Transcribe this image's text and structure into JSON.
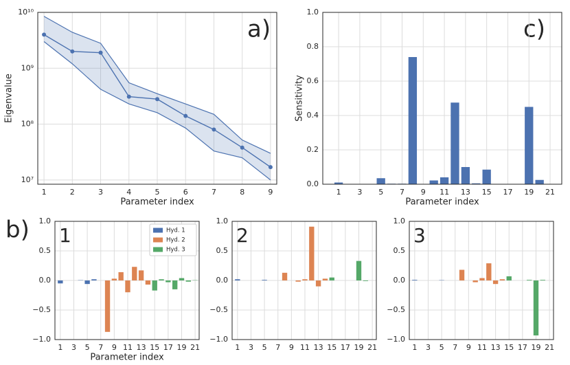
{
  "panel_labels": {
    "a": "a)",
    "b": "b)",
    "c": "c)"
  },
  "chart_data": [
    {
      "type": "line",
      "x": [
        1,
        2,
        3,
        4,
        5,
        6,
        7,
        8,
        9
      ],
      "values": [
        4000000000,
        2000000000,
        1900000000,
        310000000,
        280000000,
        140000000,
        80000000,
        38000000,
        17000000
      ],
      "upper": [
        8500000000,
        4400000000,
        2800000000,
        550000000,
        350000000,
        230000000,
        150000000,
        52000000,
        30000000
      ],
      "lower": [
        3000000000,
        1200000000,
        420000000,
        230000000,
        160000000,
        85000000,
        33000000,
        25000000,
        10000000
      ],
      "color": "#4c72b0",
      "log_y": true,
      "grid": true,
      "xlim": [
        0.78,
        9.22
      ],
      "xticks": [
        1,
        2,
        3,
        4,
        5,
        6,
        7,
        8,
        9
      ],
      "ylim": [
        8400000,
        10000000000
      ],
      "yticks": [
        {
          "value": 10000000,
          "label": "10⁷"
        },
        {
          "value": 100000000,
          "label": "10⁸"
        },
        {
          "value": 1000000000,
          "label": "10⁹"
        },
        {
          "value": 10000000000,
          "label": "10¹⁰"
        }
      ],
      "x_label": "Parameter index",
      "y_label": "Eigenvalue"
    },
    {
      "type": "bar",
      "x": [
        1,
        2,
        3,
        4,
        5,
        6,
        7,
        8,
        9,
        10,
        11,
        12,
        13,
        14,
        15,
        16,
        17,
        18,
        19,
        20,
        21
      ],
      "values": [
        0.01,
        0,
        0,
        0,
        0.035,
        0.003,
        0.003,
        0.74,
        0,
        0.022,
        0.04,
        0.475,
        0.1,
        0.005,
        0.085,
        0,
        0,
        0,
        0.45,
        0.025,
        0
      ],
      "color": "#4c72b0",
      "grid": true,
      "xlim": [
        -0.5,
        22.1
      ],
      "xticks": [
        1,
        3,
        5,
        7,
        9,
        11,
        13,
        15,
        17,
        19,
        21
      ],
      "ylim": [
        0,
        1
      ],
      "yticks": [
        {
          "value": 0,
          "label": "0.0"
        },
        0.2,
        0.4,
        0.6,
        0.8,
        {
          "value": 1,
          "label": "1.0"
        }
      ],
      "x_label": "Parameter index",
      "y_label": "Sensitivity"
    },
    {
      "type": "bar",
      "annotation": "1",
      "x": [
        1,
        2,
        3,
        4,
        5,
        6,
        7,
        8,
        9,
        10,
        11,
        12,
        13,
        14,
        15,
        16,
        17,
        18,
        19,
        20,
        21
      ],
      "series": [
        {
          "name": "Hyd. 1",
          "color": "#4c72b0",
          "values": [
            -0.05,
            0,
            0,
            0.005,
            -0.06,
            0.02,
            0,
            null,
            null,
            null,
            null,
            null,
            null,
            null,
            null,
            null,
            null,
            null,
            null,
            null,
            null
          ]
        },
        {
          "name": "Hyd. 2",
          "color": "#dd8452",
          "values": [
            null,
            null,
            null,
            null,
            null,
            null,
            null,
            -0.87,
            0.03,
            0.14,
            -0.2,
            0.23,
            0.17,
            -0.07,
            null,
            null,
            null,
            null,
            null,
            null,
            null
          ]
        },
        {
          "name": "Hyd. 3",
          "color": "#55a868",
          "values": [
            null,
            null,
            null,
            null,
            null,
            null,
            null,
            null,
            null,
            null,
            null,
            null,
            null,
            null,
            -0.17,
            0.02,
            -0.03,
            -0.15,
            0.04,
            -0.02,
            0.005
          ]
        }
      ],
      "legend": "upper right",
      "grid": true,
      "xlim": [
        0.2,
        21.6
      ],
      "xticks": [
        1,
        3,
        5,
        7,
        9,
        11,
        13,
        15,
        17,
        19,
        21
      ],
      "ylim": [
        -1,
        1
      ],
      "yticks": [
        {
          "value": -1,
          "label": "−1.0"
        },
        {
          "value": -0.5,
          "label": "−0.5"
        },
        {
          "value": 0,
          "label": "0.0"
        },
        0.5,
        {
          "value": 1,
          "label": "1.0"
        }
      ],
      "x_label": "Parameter index"
    },
    {
      "type": "bar",
      "annotation": "2",
      "x": [
        1,
        2,
        3,
        4,
        5,
        6,
        7,
        8,
        9,
        10,
        11,
        12,
        13,
        14,
        15,
        16,
        17,
        18,
        19,
        20,
        21
      ],
      "series": [
        {
          "name": "Hyd. 1",
          "color": "#4c72b0",
          "values": [
            0.02,
            0,
            0,
            0,
            0.01,
            0,
            0,
            null,
            null,
            null,
            null,
            null,
            null,
            null,
            null,
            null,
            null,
            null,
            null,
            null,
            null
          ]
        },
        {
          "name": "Hyd. 2",
          "color": "#dd8452",
          "values": [
            null,
            null,
            null,
            null,
            null,
            null,
            null,
            0.13,
            0,
            -0.02,
            0.02,
            0.91,
            -0.1,
            0.03,
            null,
            null,
            null,
            null,
            null,
            null,
            null
          ]
        },
        {
          "name": "Hyd. 3",
          "color": "#55a868",
          "values": [
            null,
            null,
            null,
            null,
            null,
            null,
            null,
            null,
            null,
            null,
            null,
            null,
            null,
            null,
            0.05,
            0,
            0,
            0,
            0.33,
            -0.01,
            0
          ]
        }
      ],
      "grid": true,
      "xlim": [
        0.2,
        21.6
      ],
      "xticks": [
        1,
        3,
        5,
        7,
        9,
        11,
        13,
        15,
        17,
        19,
        21
      ],
      "ylim": [
        -1,
        1
      ],
      "yticks": [
        {
          "value": -1,
          "label": "−1.0"
        },
        {
          "value": -0.5,
          "label": "−0.5"
        },
        {
          "value": 0,
          "label": "0.0"
        },
        0.5,
        {
          "value": 1,
          "label": "1.0"
        }
      ]
    },
    {
      "type": "bar",
      "annotation": "3",
      "x": [
        1,
        2,
        3,
        4,
        5,
        6,
        7,
        8,
        9,
        10,
        11,
        12,
        13,
        14,
        15,
        16,
        17,
        18,
        19,
        20,
        21
      ],
      "series": [
        {
          "name": "Hyd. 1",
          "color": "#4c72b0",
          "values": [
            0.01,
            0,
            0,
            0,
            0.005,
            0,
            0,
            null,
            null,
            null,
            null,
            null,
            null,
            null,
            null,
            null,
            null,
            null,
            null,
            null,
            null
          ]
        },
        {
          "name": "Hyd. 2",
          "color": "#dd8452",
          "values": [
            null,
            null,
            null,
            null,
            null,
            null,
            null,
            0.18,
            0,
            -0.03,
            0.04,
            0.29,
            -0.06,
            0.02,
            null,
            null,
            null,
            null,
            null,
            null,
            null
          ]
        },
        {
          "name": "Hyd. 3",
          "color": "#55a868",
          "values": [
            null,
            null,
            null,
            null,
            null,
            null,
            null,
            null,
            null,
            null,
            null,
            null,
            null,
            null,
            0.07,
            0,
            0,
            0.01,
            -0.93,
            0.01,
            0
          ]
        }
      ],
      "grid": true,
      "xlim": [
        0.2,
        21.6
      ],
      "xticks": [
        1,
        3,
        5,
        7,
        9,
        11,
        13,
        15,
        17,
        19,
        21
      ],
      "ylim": [
        -1,
        1
      ],
      "yticks": [
        {
          "value": -1,
          "label": "−1.0"
        },
        {
          "value": -0.5,
          "label": "−0.5"
        },
        {
          "value": 0,
          "label": "0.0"
        },
        0.5,
        {
          "value": 1,
          "label": "1.0"
        }
      ]
    }
  ]
}
